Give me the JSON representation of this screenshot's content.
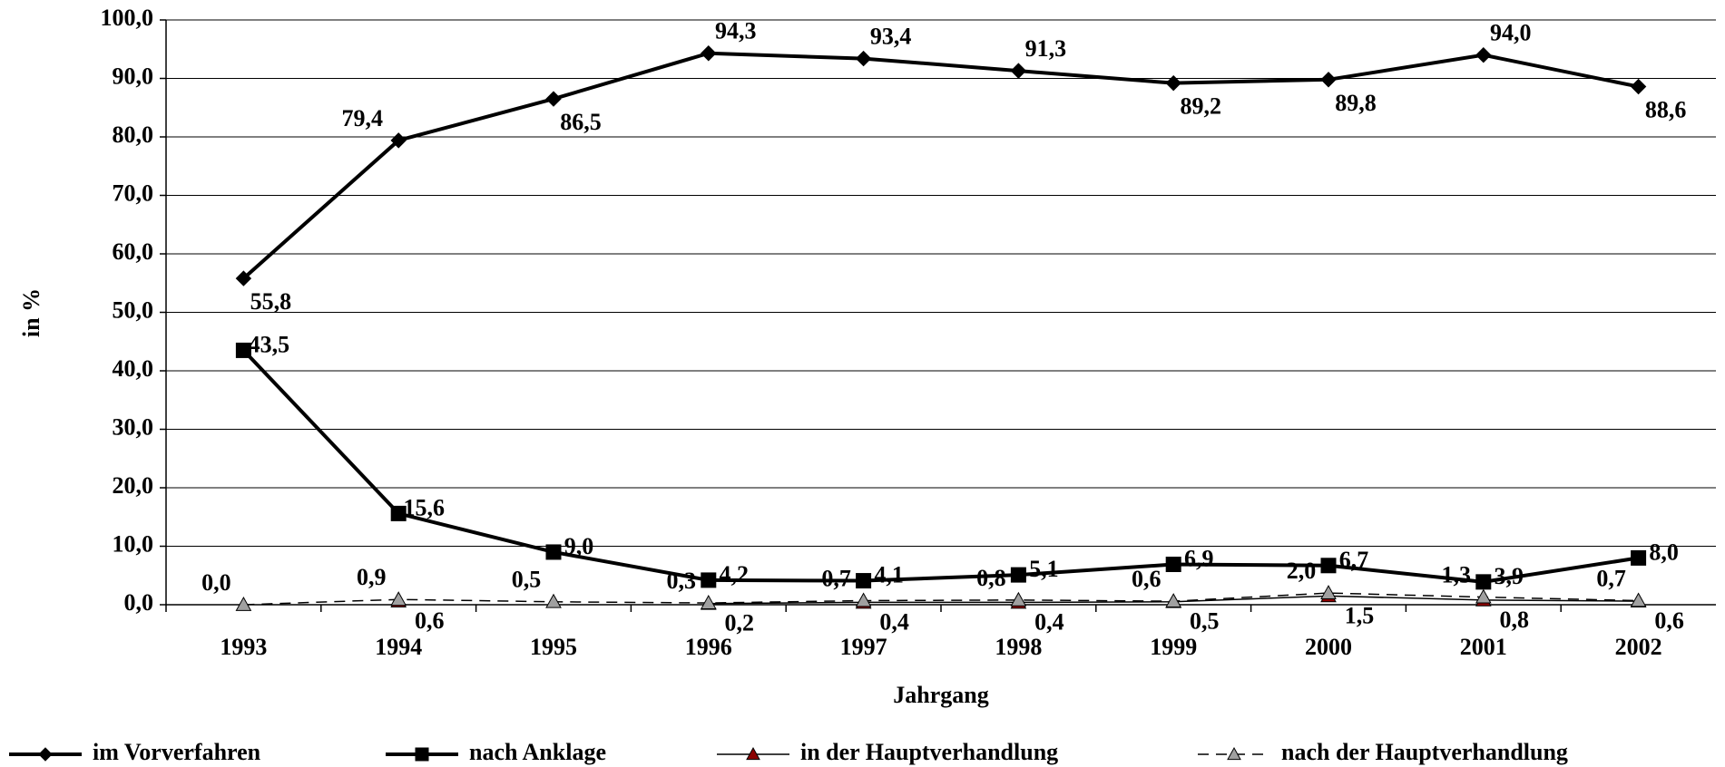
{
  "chart_data": {
    "type": "line",
    "x_label": "Jahrgang",
    "y_label": "in %",
    "categories": [
      "1993",
      "1994",
      "1995",
      "1996",
      "1997",
      "1998",
      "1999",
      "2000",
      "2001",
      "2002"
    ],
    "ylim": [
      0,
      100
    ],
    "yticks": [
      {
        "value": 0,
        "label": "0,0"
      },
      {
        "value": 10,
        "label": "10,0"
      },
      {
        "value": 20,
        "label": "20,0"
      },
      {
        "value": 30,
        "label": "30,0"
      },
      {
        "value": 40,
        "label": "40,0"
      },
      {
        "value": 50,
        "label": "50,0"
      },
      {
        "value": 60,
        "label": "60,0"
      },
      {
        "value": 70,
        "label": "70,0"
      },
      {
        "value": 80,
        "label": "80,0"
      },
      {
        "value": 90,
        "label": "90,0"
      },
      {
        "value": 100,
        "label": "100,0"
      }
    ],
    "grid": true,
    "legend": "bottom",
    "series": [
      {
        "name": "im Vorverfahren",
        "color": "#000000",
        "marker": "diamond",
        "marker_color": "#000000",
        "dash": false,
        "values": [
          55.8,
          79.4,
          86.5,
          94.3,
          93.4,
          91.3,
          89.2,
          89.8,
          94.0,
          88.6
        ],
        "value_labels": [
          "55,8",
          "79,4",
          "86,5",
          "94,3",
          "93,4",
          "91,3",
          "89,2",
          "89,8",
          "94,0",
          "88,6"
        ]
      },
      {
        "name": "nach Anklage",
        "color": "#000000",
        "marker": "square",
        "marker_color": "#000000",
        "dash": false,
        "values": [
          43.5,
          15.6,
          9.0,
          4.2,
          4.1,
          5.1,
          6.9,
          6.7,
          3.9,
          8.0
        ],
        "value_labels": [
          "43,5",
          "15,6",
          "9,0",
          "4,2",
          "4,1",
          "5,1",
          "6,9",
          "6,7",
          "3,9",
          "8,0"
        ]
      },
      {
        "name": "in der Hauptverhandlung",
        "color": "#000000",
        "marker": "triangle",
        "marker_color": "#8b0000",
        "dash": false,
        "values": [
          null,
          0.6,
          null,
          0.2,
          0.4,
          0.4,
          0.5,
          1.5,
          0.8,
          0.6
        ],
        "value_labels": [
          null,
          "0,6",
          null,
          "0,2",
          "0,4",
          "0,4",
          "0,5",
          "1,5",
          "0,8",
          "0,6"
        ]
      },
      {
        "name": "nach der Hauptverhandlung",
        "color": "#000000",
        "marker": "triangle",
        "marker_color": "#a0a0a0",
        "dash": true,
        "values": [
          0.0,
          0.9,
          0.5,
          0.3,
          0.7,
          0.8,
          0.6,
          2.0,
          1.3,
          0.7
        ],
        "value_labels": [
          "0,0",
          "0,9",
          "0,5",
          "0,3",
          "0,7",
          "0,8",
          "0,6",
          "2,0",
          "1,3",
          "0,7"
        ]
      }
    ]
  }
}
